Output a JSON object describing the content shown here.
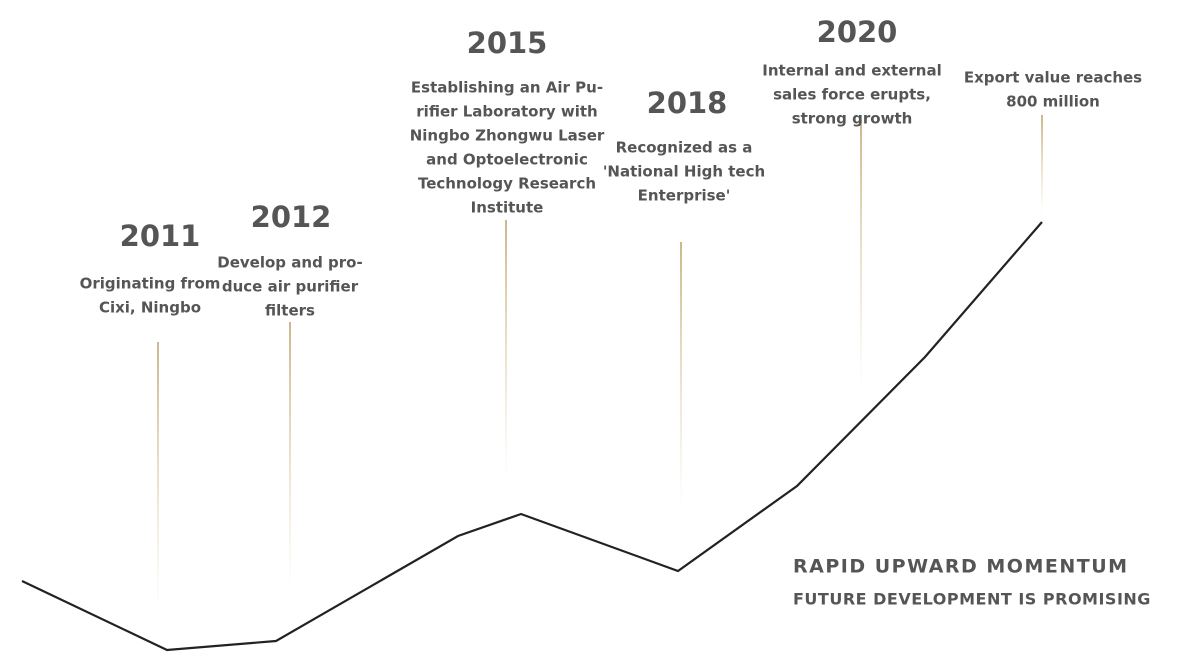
{
  "milestones": [
    {
      "year": "2011",
      "lines": [
        "Originating from",
        "Cixi, Ningbo"
      ]
    },
    {
      "year": "2012",
      "lines": [
        "Develop and pro-",
        "duce air purifier",
        "filters"
      ]
    },
    {
      "year": "2015",
      "lines": [
        "Establishing an Air Pu-",
        "rifier Laboratory with",
        "Ningbo Zhongwu Laser",
        "and Optoelectronic",
        "Technology Research",
        "Institute"
      ]
    },
    {
      "year": "2018",
      "lines": [
        "Recognized as a",
        "'National High tech",
        "Enterprise'"
      ]
    },
    {
      "year": "2020",
      "lines": [
        "Internal and external",
        "sales force erupts,",
        "strong growth"
      ]
    },
    {
      "lines": [
        "Export value reaches",
        "800 million"
      ]
    }
  ],
  "tagline": {
    "title": "RAPID UPWARD MOMENTUM",
    "subtitle": "FUTURE DEVELOPMENT IS PROMISING"
  }
}
